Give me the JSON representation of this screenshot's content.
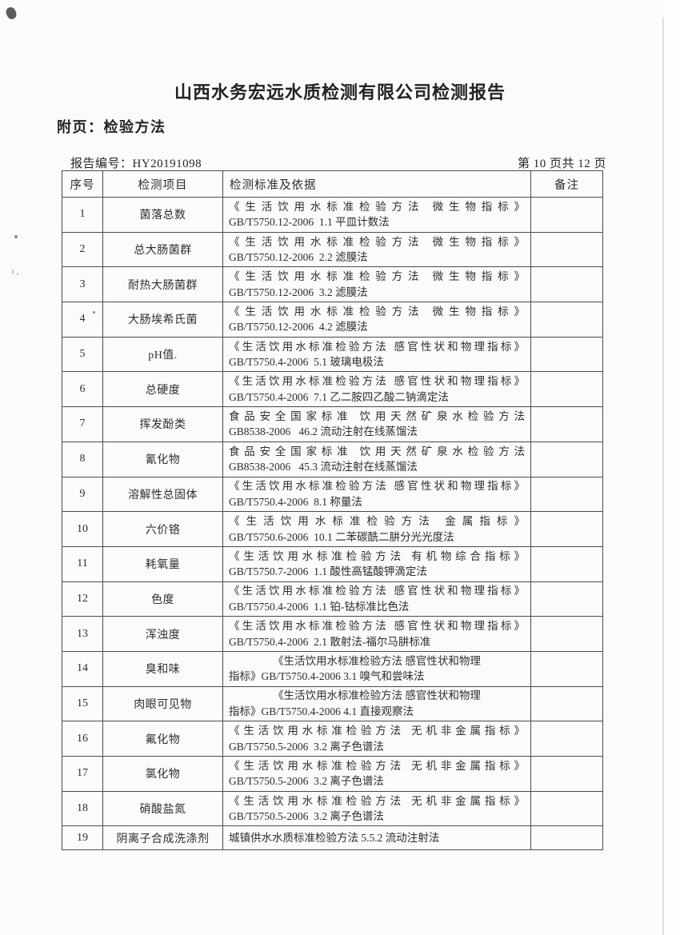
{
  "page": {
    "title": "山西水务宏远水质检测有限公司检测报告",
    "subtitle": "附页：检验方法",
    "report_no_label": "报告编号：",
    "report_no": "HY20191098",
    "page_indicator": "第 10 页共 12 页"
  },
  "colors": {
    "paper": "#fbfbf9",
    "ink": "#2a2a2a",
    "table_border": "#4b4b4c"
  },
  "table": {
    "headers": [
      "序号",
      "检测项目",
      "检测标准及依据",
      "备注"
    ],
    "rows": [
      {
        "no": "1",
        "item": "菌落总数",
        "std_lines": [
          "《生活饮用水标准检验方法  微生物指标》",
          "GB/T5750.12-2006  1.1 平皿计数法"
        ],
        "remark": ""
      },
      {
        "no": "2",
        "item": "总大肠菌群",
        "std_lines": [
          "《生活饮用水标准检验方法  微生物指标》",
          "GB/T5750.12-2006  2.2 滤膜法"
        ],
        "remark": ""
      },
      {
        "no": "3",
        "item": "耐热大肠菌群",
        "std_lines": [
          "《生活饮用水标准检验方法  微生物指标》",
          "GB/T5750.12-2006  3.2 滤膜法"
        ],
        "remark": ""
      },
      {
        "no": "4",
        "item": "大肠埃希氏菌",
        "std_lines": [
          "《生活饮用水标准检验方法  微生物指标》",
          "GB/T5750.12-2006  4.2 滤膜法"
        ],
        "remark": ""
      },
      {
        "no": "5",
        "item": "pH值.",
        "std_lines": [
          "《生活饮用水标准检验方法 感官性状和物理指标》",
          "GB/T5750.4-2006  5.1 玻璃电极法"
        ],
        "remark": ""
      },
      {
        "no": "6",
        "item": "总硬度",
        "std_lines": [
          "《生活饮用水标准检验方法 感官性状和物理指标》",
          "GB/T5750.4-2006  7.1 乙二胺四乙酸二钠滴定法"
        ],
        "remark": ""
      },
      {
        "no": "7",
        "item": "挥发酚类",
        "std_lines": [
          "食品安全国家标准  饮用天然矿泉水检验方法",
          "GB8538-2006   46.2 流动注射在线蒸馏法"
        ],
        "remark": ""
      },
      {
        "no": "8",
        "item": "氰化物",
        "std_lines": [
          "食品安全国家标准  饮用天然矿泉水检验方法",
          "GB8538-2006   45.3 流动注射在线蒸馏法"
        ],
        "remark": ""
      },
      {
        "no": "9",
        "item": "溶解性总固体",
        "std_lines": [
          "《生活饮用水标准检验方法 感官性状和物理指标》",
          "GB/T5750.4-2006  8.1 称量法"
        ],
        "remark": ""
      },
      {
        "no": "10",
        "item": "六价铬",
        "std_lines": [
          "《生活饮用水标准检验方法  金属指标》",
          "GB/T5750.6-2006  10.1 二苯碳酰二肼分光光度法"
        ],
        "remark": ""
      },
      {
        "no": "11",
        "item": "耗氧量",
        "std_lines": [
          "《生活饮用水标准检验方法 有机物综合指标》",
          "GB/T5750.7-2006  1.1 酸性高锰酸钾滴定法"
        ],
        "remark": ""
      },
      {
        "no": "12",
        "item": "色度",
        "std_lines": [
          "《生活饮用水标准检验方法 感官性状和物理指标》",
          "GB/T5750.4-2006  1.1 铂-钴标准比色法"
        ],
        "remark": ""
      },
      {
        "no": "13",
        "item": "浑浊度",
        "std_lines": [
          "《生活饮用水标准检验方法 感官性状和物理指标》",
          "GB/T5750.4-2006  2.1 散射法-福尔马肼标准"
        ],
        "remark": ""
      },
      {
        "no": "14",
        "item": "臭和味",
        "std_lines": [
          "《生活饮用水标准检验方法 感官性状和物理",
          "指标》GB/T5750.4-2006 3.1 嗅气和尝味法"
        ],
        "remark": ""
      },
      {
        "no": "15",
        "item": "肉眼可见物",
        "std_lines": [
          "《生活饮用水标准检验方法 感官性状和物理",
          "指标》GB/T5750.4-2006 4.1 直接观察法"
        ],
        "remark": ""
      },
      {
        "no": "16",
        "item": "氟化物",
        "std_lines": [
          "《生活饮用水标准检验方法 无机非金属指标》",
          "GB/T5750.5-2006  3.2 离子色谱法"
        ],
        "remark": ""
      },
      {
        "no": "17",
        "item": "氯化物",
        "std_lines": [
          "《生活饮用水标准检验方法 无机非金属指标》",
          "GB/T5750.5-2006  3.2 离子色谱法"
        ],
        "remark": ""
      },
      {
        "no": "18",
        "item": "硝酸盐氮",
        "std_lines": [
          "《生活饮用水标准检验方法 无机非金属指标》",
          "GB/T5750.5-2006  3.2 离子色谱法"
        ],
        "remark": ""
      },
      {
        "no": "19",
        "item": "阴离子合成洗涤剂",
        "std_lines": [
          "城镇供水水质标准检验方法 5.5.2  流动注射法"
        ],
        "remark": ""
      }
    ]
  }
}
